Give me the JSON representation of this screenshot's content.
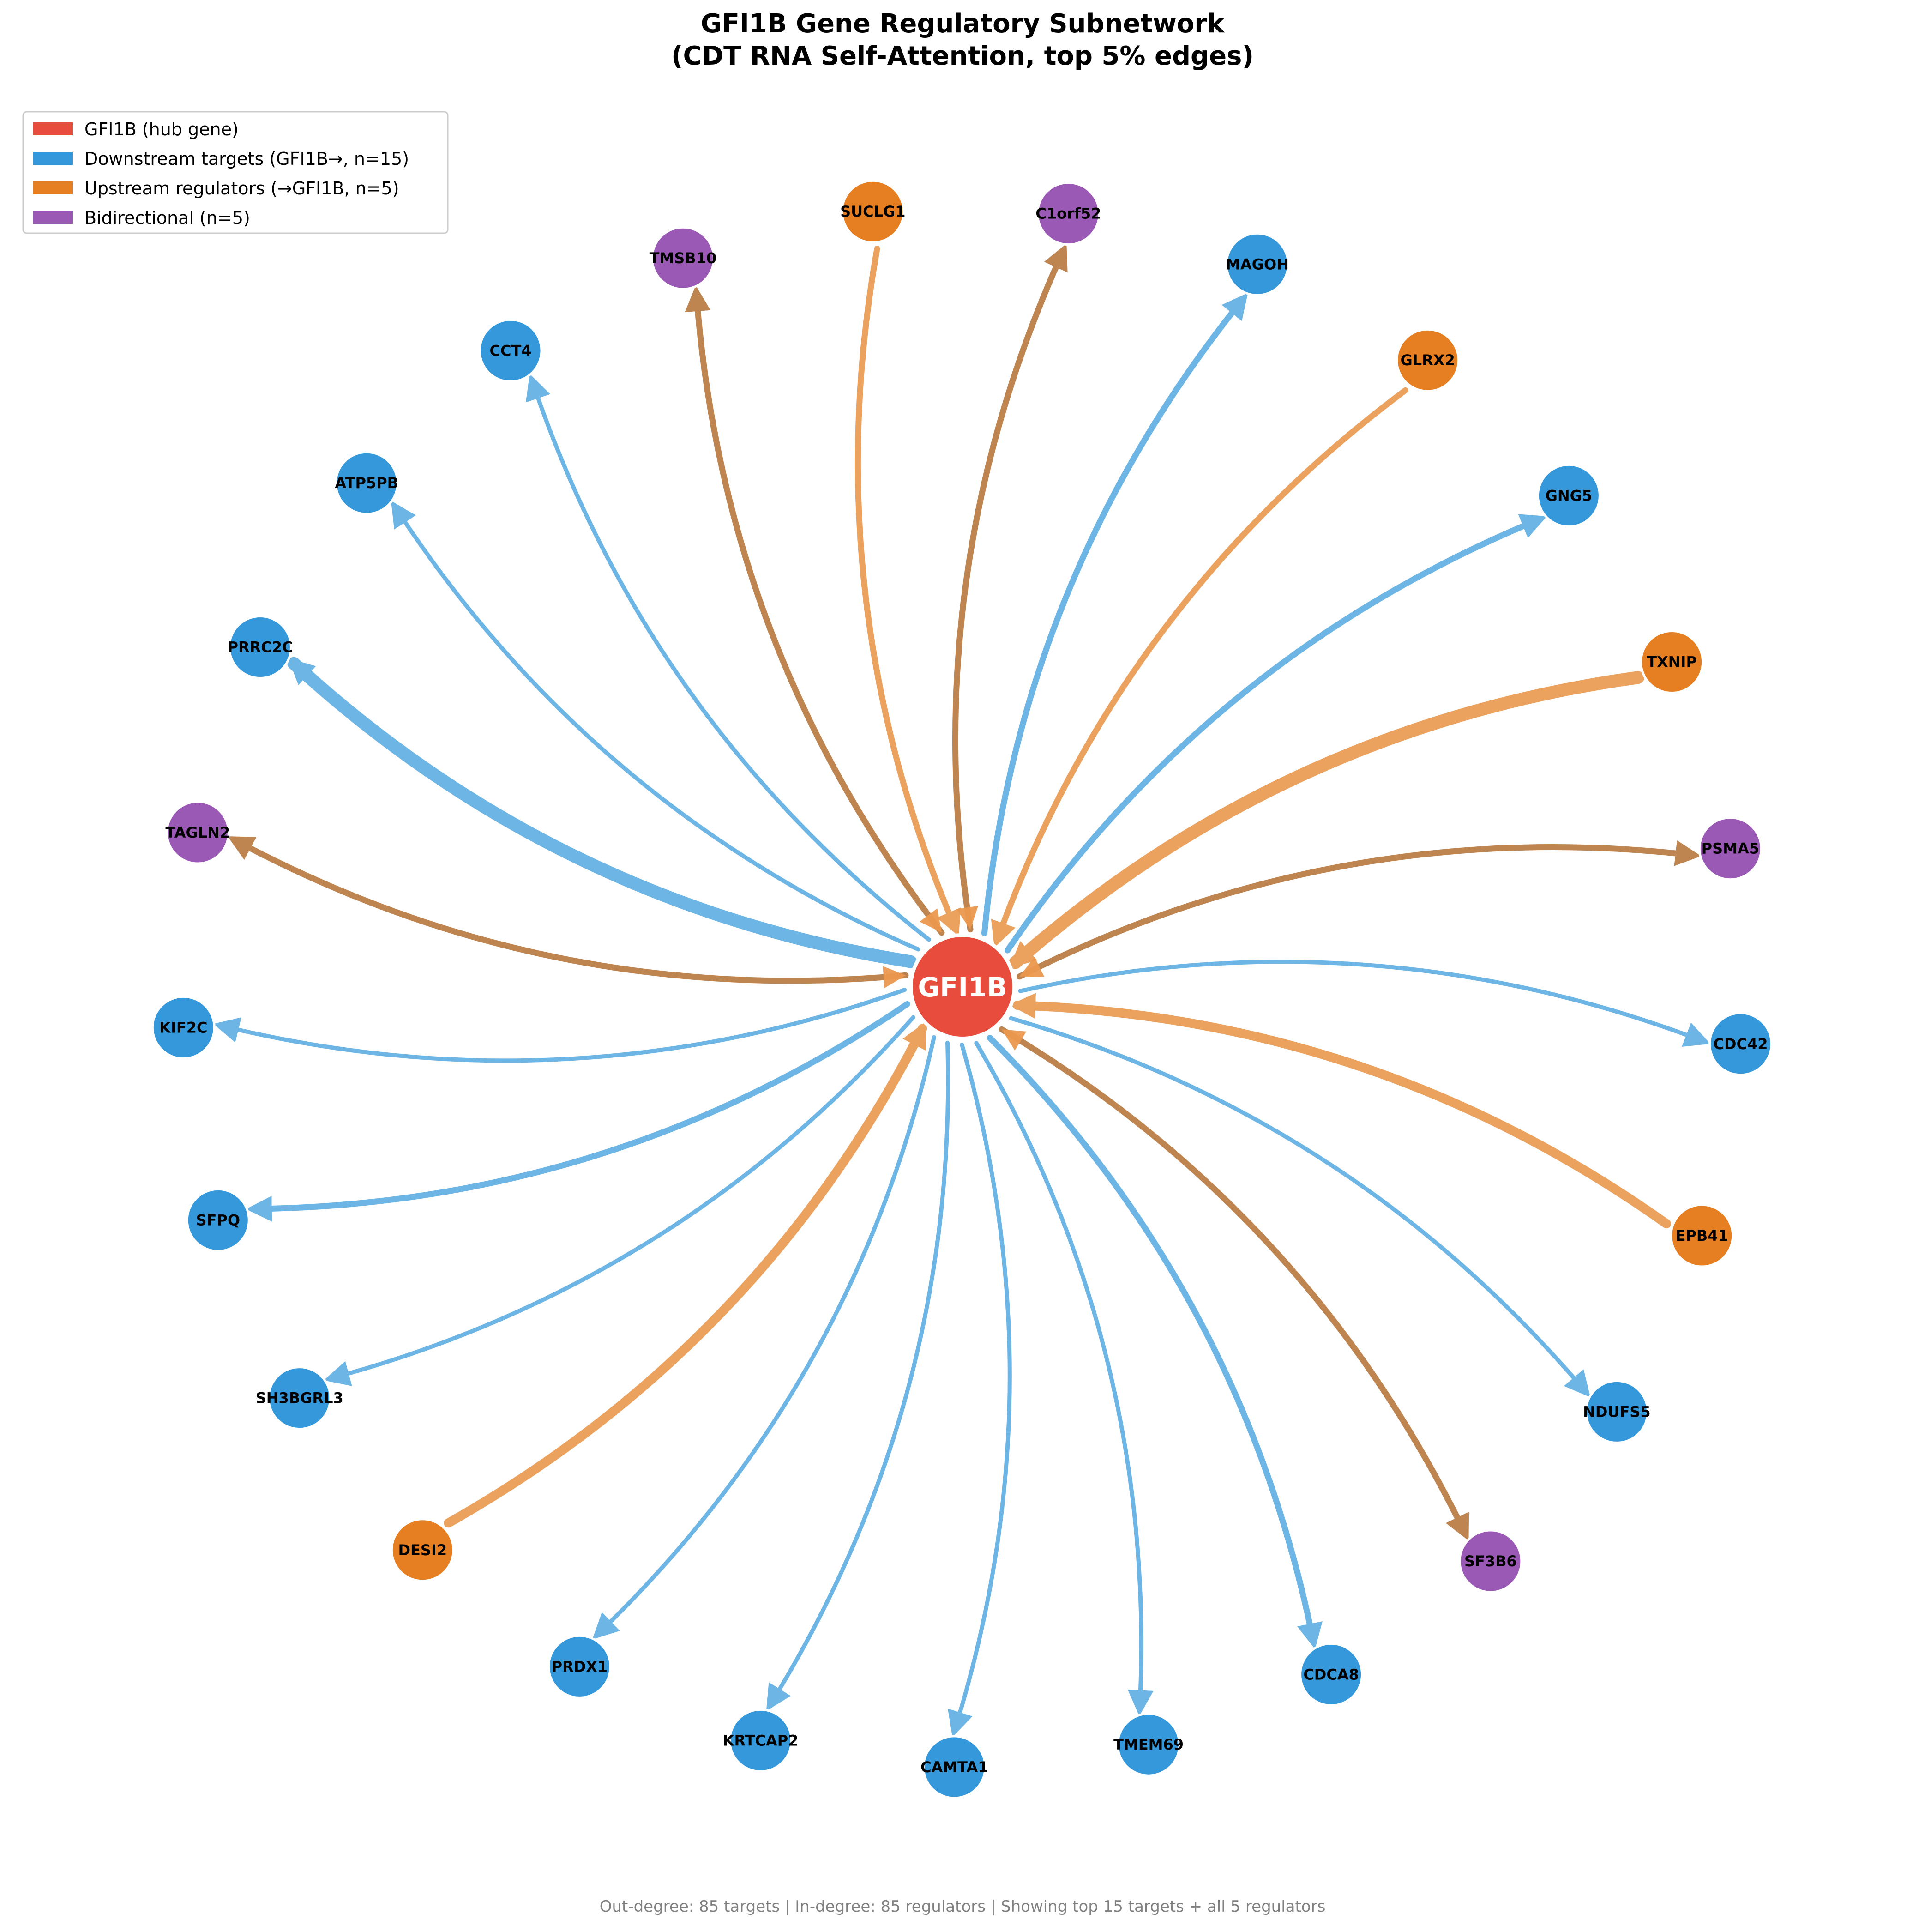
{
  "title": {
    "line1": "GFI1B Gene Regulatory Subnetwork",
    "line2": "(CDT RNA Self-Attention, top 5% edges)"
  },
  "colors": {
    "hub": "#e74c3c",
    "downstream": "#3498db",
    "upstream": "#e67e22",
    "bidirectional": "#9b59b6",
    "downstream_edge": "#5dade2",
    "upstream_edge": "#eb984e",
    "bidirectional_edge": "#b9783f"
  },
  "legend": [
    {
      "key": "hub",
      "label": "GFI1B (hub gene)"
    },
    {
      "key": "downstream",
      "label": "Downstream targets (GFI1B→, n=15)"
    },
    {
      "key": "upstream",
      "label": "Upstream regulators (→GFI1B, n=5)"
    },
    {
      "key": "bidirectional",
      "label": "Bidirectional (n=5)"
    }
  ],
  "hub": {
    "label": "GFI1B"
  },
  "nodes": [
    {
      "label": "TAGLN2",
      "type": "bidirectional",
      "weight": 2
    },
    {
      "label": "PRRC2C",
      "type": "downstream",
      "weight": 4
    },
    {
      "label": "ATP5PB",
      "type": "downstream",
      "weight": 1
    },
    {
      "label": "CCT4",
      "type": "downstream",
      "weight": 1
    },
    {
      "label": "TMSB10",
      "type": "bidirectional",
      "weight": 2
    },
    {
      "label": "SUCLG1",
      "type": "upstream",
      "weight": 2
    },
    {
      "label": "C1orf52",
      "type": "bidirectional",
      "weight": 2
    },
    {
      "label": "MAGOH",
      "type": "downstream",
      "weight": 2
    },
    {
      "label": "GLRX2",
      "type": "upstream",
      "weight": 2
    },
    {
      "label": "GNG5",
      "type": "downstream",
      "weight": 2
    },
    {
      "label": "TXNIP",
      "type": "upstream",
      "weight": 4
    },
    {
      "label": "PSMA5",
      "type": "bidirectional",
      "weight": 2
    },
    {
      "label": "CDC42",
      "type": "downstream",
      "weight": 1
    },
    {
      "label": "EPB41",
      "type": "upstream",
      "weight": 3
    },
    {
      "label": "NDUFS5",
      "type": "downstream",
      "weight": 1
    },
    {
      "label": "SF3B6",
      "type": "bidirectional",
      "weight": 2
    },
    {
      "label": "CDCA8",
      "type": "downstream",
      "weight": 2
    },
    {
      "label": "TMEM69",
      "type": "downstream",
      "weight": 1
    },
    {
      "label": "CAMTA1",
      "type": "downstream",
      "weight": 1
    },
    {
      "label": "KRTCAP2",
      "type": "downstream",
      "weight": 1
    },
    {
      "label": "PRDX1",
      "type": "downstream",
      "weight": 1
    },
    {
      "label": "DESI2",
      "type": "upstream",
      "weight": 3
    },
    {
      "label": "SH3BGRL3",
      "type": "downstream",
      "weight": 1
    },
    {
      "label": "SFPQ",
      "type": "downstream",
      "weight": 2
    },
    {
      "label": "KIF2C",
      "type": "downstream",
      "weight": 1
    }
  ],
  "footer": "Out-degree: 85 targets | In-degree: 85 regulators | Showing top 15 targets + all 5 regulators"
}
